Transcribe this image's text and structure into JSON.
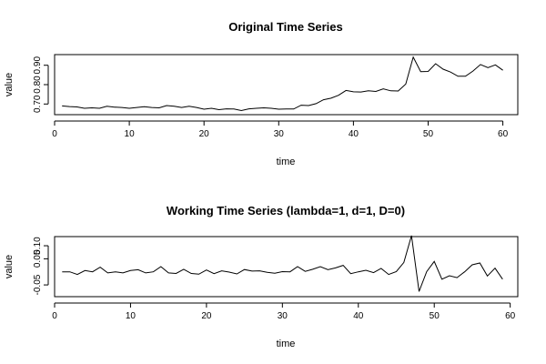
{
  "chart_data": [
    {
      "type": "line",
      "title": "Original Time Series",
      "xlabel": "time",
      "ylabel": "value",
      "xlim": [
        0,
        62
      ],
      "ylim": [
        0.645,
        0.955
      ],
      "xticks": [
        0,
        10,
        20,
        30,
        40,
        50,
        60
      ],
      "yticks": [
        0.7,
        0.8,
        0.9
      ],
      "ytick_labels": [
        "0.70",
        "0.80",
        "0.90"
      ],
      "grid": false,
      "series": [
        {
          "x": [
            1,
            2,
            3,
            4,
            5,
            6,
            7,
            8,
            9,
            10,
            11,
            12,
            13,
            14,
            15,
            16,
            17,
            18,
            19,
            20,
            21,
            22,
            23,
            24,
            25,
            26,
            27,
            28,
            29,
            30,
            31,
            32,
            33,
            34,
            35,
            36,
            37,
            38,
            39,
            40,
            41,
            42,
            43,
            44,
            45,
            46,
            47,
            48,
            49,
            50,
            51,
            52,
            53,
            54,
            55,
            56,
            57,
            58,
            59,
            60
          ],
          "values": [
            0.69,
            0.687,
            0.685,
            0.678,
            0.68,
            0.678,
            0.688,
            0.684,
            0.682,
            0.678,
            0.682,
            0.686,
            0.682,
            0.68,
            0.692,
            0.688,
            0.682,
            0.688,
            0.682,
            0.673,
            0.678,
            0.671,
            0.675,
            0.674,
            0.666,
            0.675,
            0.678,
            0.68,
            0.678,
            0.673,
            0.674,
            0.674,
            0.694,
            0.692,
            0.702,
            0.722,
            0.73,
            0.745,
            0.77,
            0.763,
            0.762,
            0.768,
            0.765,
            0.778,
            0.768,
            0.767,
            0.803,
            0.942,
            0.867,
            0.868,
            0.908,
            0.88,
            0.865,
            0.843,
            0.843,
            0.87,
            0.904,
            0.888,
            0.902,
            0.874
          ]
        }
      ]
    },
    {
      "type": "line",
      "title": "Working Time Series (lambda=1, d=1, D=0)",
      "xlabel": "time",
      "ylabel": "value",
      "xlim": [
        0,
        61
      ],
      "ylim": [
        -0.095,
        0.135
      ],
      "xticks": [
        0,
        10,
        20,
        30,
        40,
        50,
        60
      ],
      "yticks": [
        -0.05,
        0.05,
        0.1
      ],
      "ytick_labels": [
        "-0.05",
        "0.05",
        "0.10"
      ],
      "grid": false,
      "series": [
        {
          "x": [
            1,
            2,
            3,
            4,
            5,
            6,
            7,
            8,
            9,
            10,
            11,
            12,
            13,
            14,
            15,
            16,
            17,
            18,
            19,
            20,
            21,
            22,
            23,
            24,
            25,
            26,
            27,
            28,
            29,
            30,
            31,
            32,
            33,
            34,
            35,
            36,
            37,
            38,
            39,
            40,
            41,
            42,
            43,
            44,
            45,
            46,
            47,
            48,
            49,
            50,
            51,
            52,
            53,
            54,
            55,
            56,
            57,
            58,
            59
          ],
          "values": [
            0.0,
            0.0,
            -0.01,
            0.005,
            0.0,
            0.018,
            -0.004,
            0.0,
            -0.004,
            0.005,
            0.008,
            -0.004,
            0.0,
            0.02,
            -0.004,
            -0.006,
            0.01,
            -0.006,
            -0.009,
            0.007,
            -0.007,
            0.004,
            -0.001,
            -0.008,
            0.009,
            0.003,
            0.004,
            -0.002,
            -0.005,
            0.001,
            0.0,
            0.02,
            0.002,
            0.01,
            0.02,
            0.008,
            0.015,
            0.025,
            -0.007,
            0.0,
            0.006,
            -0.003,
            0.013,
            -0.01,
            0.001,
            0.036,
            0.139,
            -0.075,
            0.001,
            0.04,
            -0.028,
            -0.015,
            -0.022,
            0.0,
            0.027,
            0.034,
            -0.016,
            0.014,
            -0.028
          ]
        }
      ]
    }
  ]
}
